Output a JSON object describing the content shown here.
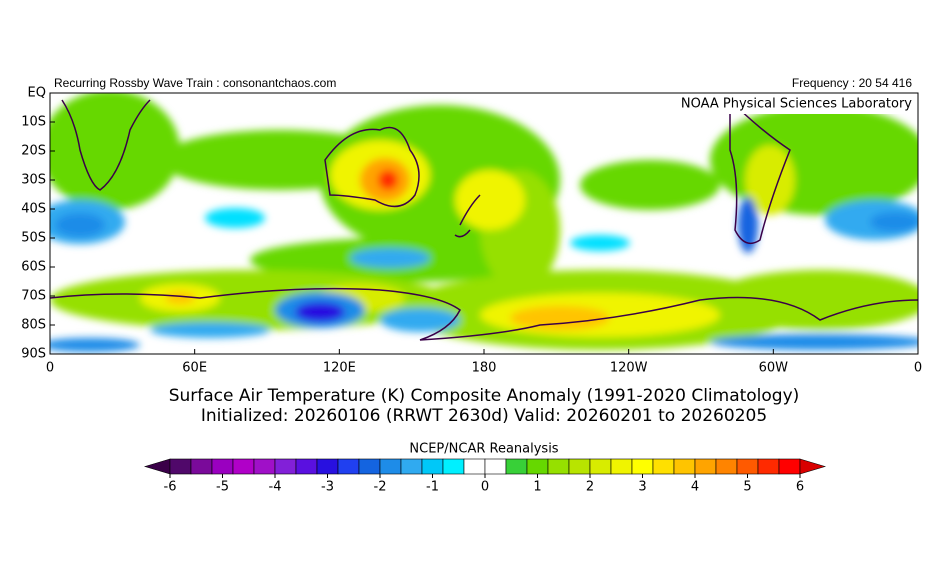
{
  "header": {
    "left": "Recurring Rossby Wave Train : consonantchaos.com",
    "right": "Frequency : 20 54 416"
  },
  "map": {
    "credit": "NOAA Physical Sciences Laboratory",
    "lat_labels": [
      "EQ",
      "10S",
      "20S",
      "30S",
      "40S",
      "50S",
      "60S",
      "70S",
      "80S",
      "90S"
    ],
    "lon_labels": [
      "0",
      "60E",
      "120E",
      "180",
      "120W",
      "60W",
      "0"
    ]
  },
  "title": {
    "line1": "Surface Air Temperature (K) Composite Anomaly (1991-2020 Climatology)",
    "line2": "Initialized: 20260106 (RRWT 2630d) Valid: 20260201 to 20260205"
  },
  "colorbar": {
    "label": "NCEP/NCAR Reanalysis",
    "ticks": [
      -6,
      -5,
      -4,
      -3,
      -2,
      -1,
      0,
      1,
      2,
      3,
      4,
      5,
      6
    ],
    "colors": [
      "#3a0048",
      "#50086a",
      "#7a0a9a",
      "#9a00c0",
      "#b000c8",
      "#a010c8",
      "#8220d8",
      "#5a10e0",
      "#2810e0",
      "#2040f0",
      "#1464e0",
      "#1e8ce8",
      "#30aaf0",
      "#00c8f8",
      "#00f0ff",
      "#ffffff",
      "#ffffff",
      "#38d038",
      "#66d800",
      "#96e000",
      "#b8e400",
      "#d8ec00",
      "#f0f400",
      "#ffff00",
      "#ffe000",
      "#ffc400",
      "#ffa400",
      "#ff8400",
      "#ff5a00",
      "#ff2a00",
      "#ff0000",
      "#d80000"
    ]
  }
}
